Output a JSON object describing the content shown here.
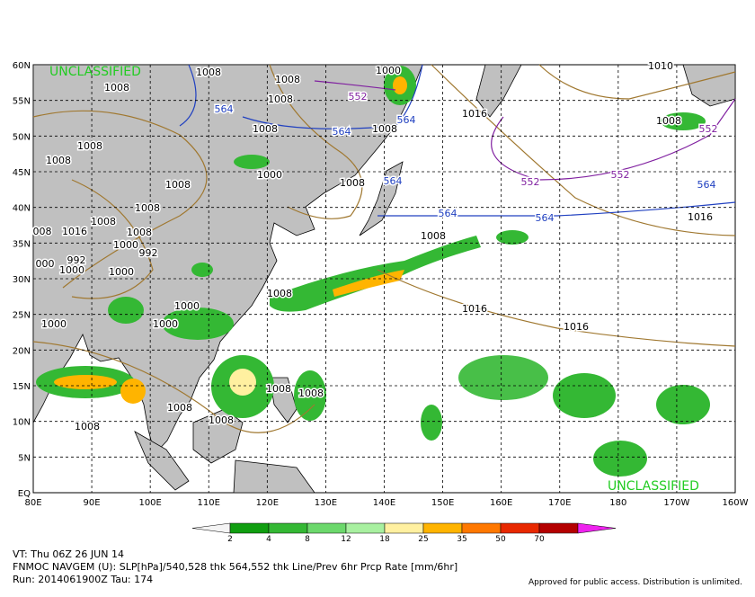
{
  "map": {
    "classification_top": "UNCLASSIFIED",
    "classification_bottom": "UNCLASSIFIED",
    "lat_labels": [
      "60N",
      "55N",
      "50N",
      "45N",
      "40N",
      "35N",
      "30N",
      "25N",
      "20N",
      "15N",
      "10N",
      "5N",
      "EQ"
    ],
    "lon_labels": [
      "80E",
      "90E",
      "100E",
      "110E",
      "120E",
      "130E",
      "140E",
      "150E",
      "160E",
      "170E",
      "180",
      "170W",
      "160W"
    ],
    "contour_labels": [
      "1008",
      "1000",
      "1010",
      "1008",
      "1008",
      "552",
      "1008",
      "564",
      "1016",
      "564",
      "1008",
      "552",
      "1008",
      "564",
      "1008",
      "1008",
      "1008",
      "1000",
      "1008",
      "1008",
      "564",
      "552",
      "552",
      "564",
      "1008",
      "564",
      "564",
      "1016",
      "1008",
      "1016",
      "008",
      "1008",
      "1000",
      "992",
      "992",
      "1008",
      "000",
      "1000",
      "1000",
      "1000",
      "1008",
      "1016",
      "1016",
      "1000",
      "1000",
      "1008",
      "1008",
      "1008",
      "1008",
      "1008"
    ]
  },
  "legend": {
    "ticks": [
      2,
      4,
      8,
      12,
      18,
      25,
      35,
      50,
      70
    ],
    "colors": [
      "#f4f4f4",
      "#109e10",
      "#34b834",
      "#6cd86c",
      "#a8f0a0",
      "#fff0a0",
      "#ffb400",
      "#ff7800",
      "#e82800",
      "#b40000",
      "#8c0000",
      "#ee22ee"
    ]
  },
  "footer": {
    "valid": "VT: Thu 06Z 26 JUN 14",
    "model": "FNMOC NAVGEM (U): SLP[hPa]/540,528 thk 564,552 thk Line/Prev 6hr Prcp Rate [mm/6hr]",
    "run": "Run: 2014061900Z Tau: 174",
    "notice": "Approved for public access. Distribution is unlimited."
  }
}
